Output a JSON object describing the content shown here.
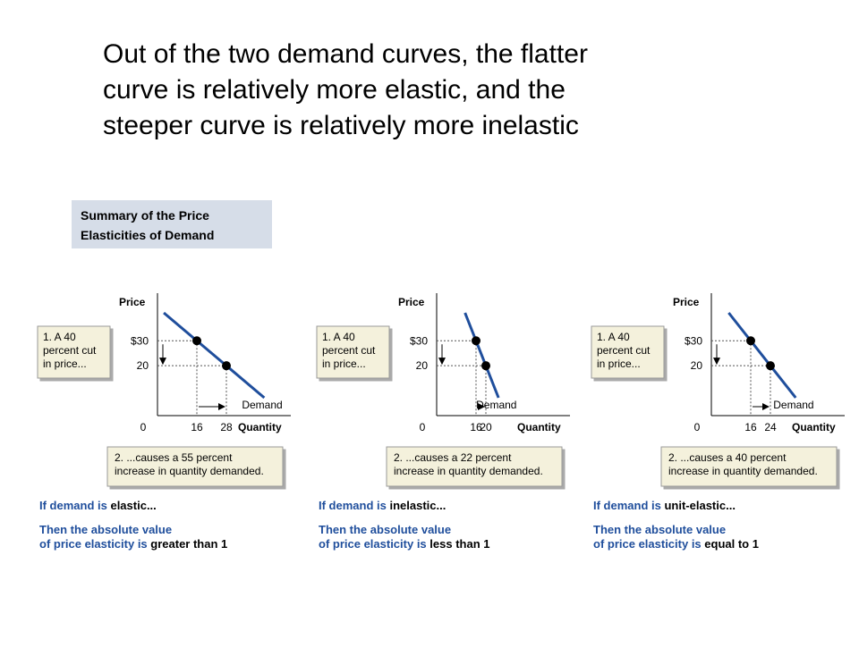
{
  "slide": {
    "title": [
      "Out of the two demand curves, the flatter",
      "curve is relatively more elastic, and the",
      "steeper curve is relatively more inelastic"
    ],
    "summary": [
      "Summary of the Price",
      "Elasticities of Demand"
    ]
  },
  "chart_data": [
    {
      "type": "line",
      "xlabel": "Quantity",
      "ylabel": "Price",
      "xlim": [
        0,
        52
      ],
      "ylim": [
        0,
        48
      ],
      "xticks": [
        0,
        16,
        28
      ],
      "yticks": [
        {
          "value": 30,
          "label": "$30"
        },
        20
      ],
      "grid": false,
      "series": [
        {
          "name": "Demand",
          "color": "#1f4e9c",
          "x": [
            16,
            28
          ],
          "values": [
            30,
            20
          ]
        }
      ],
      "annotations": [
        [
          "1. A 40",
          "percent cut",
          "in price..."
        ],
        [
          "2.  ...causes a 55 percent",
          "increase in quantity demanded."
        ]
      ],
      "caption": {
        "line1": [
          "If demand is ",
          "elastic..."
        ],
        "line2": "Then the absolute value",
        "line3": [
          "of price elasticity is ",
          "greater than 1"
        ]
      }
    },
    {
      "type": "line",
      "xlabel": "Quantity",
      "ylabel": "Price",
      "xlim": [
        0,
        52
      ],
      "ylim": [
        0,
        48
      ],
      "xticks": [
        0,
        16,
        20
      ],
      "yticks": [
        {
          "value": 30,
          "label": "$30"
        },
        20
      ],
      "grid": false,
      "series": [
        {
          "name": "Demand",
          "color": "#1f4e9c",
          "x": [
            16,
            20
          ],
          "values": [
            30,
            20
          ]
        }
      ],
      "annotations": [
        [
          "1. A 40",
          "percent cut",
          "in price..."
        ],
        [
          "2.  ...causes a 22 percent",
          "increase in quantity demanded."
        ]
      ],
      "caption": {
        "line1": [
          "If demand is ",
          "inelastic..."
        ],
        "line2": "Then the absolute value",
        "line3": [
          "of price elasticity is ",
          "less than 1"
        ]
      }
    },
    {
      "type": "line",
      "xlabel": "Quantity",
      "ylabel": "Price",
      "xlim": [
        0,
        52
      ],
      "ylim": [
        0,
        48
      ],
      "xticks": [
        0,
        16,
        24
      ],
      "yticks": [
        {
          "value": 30,
          "label": "$30"
        },
        20
      ],
      "grid": false,
      "series": [
        {
          "name": "Demand",
          "color": "#1f4e9c",
          "x": [
            16,
            24
          ],
          "values": [
            30,
            20
          ]
        }
      ],
      "annotations": [
        [
          "1. A 40",
          "percent cut",
          "in price..."
        ],
        [
          "2.  ...causes a 40 percent",
          "increase in quantity demanded."
        ]
      ],
      "caption": {
        "line1": [
          "If demand is ",
          "unit-elastic..."
        ],
        "line2": "Then the absolute value",
        "line3": [
          "of price elasticity is ",
          "equal to 1"
        ]
      }
    }
  ]
}
